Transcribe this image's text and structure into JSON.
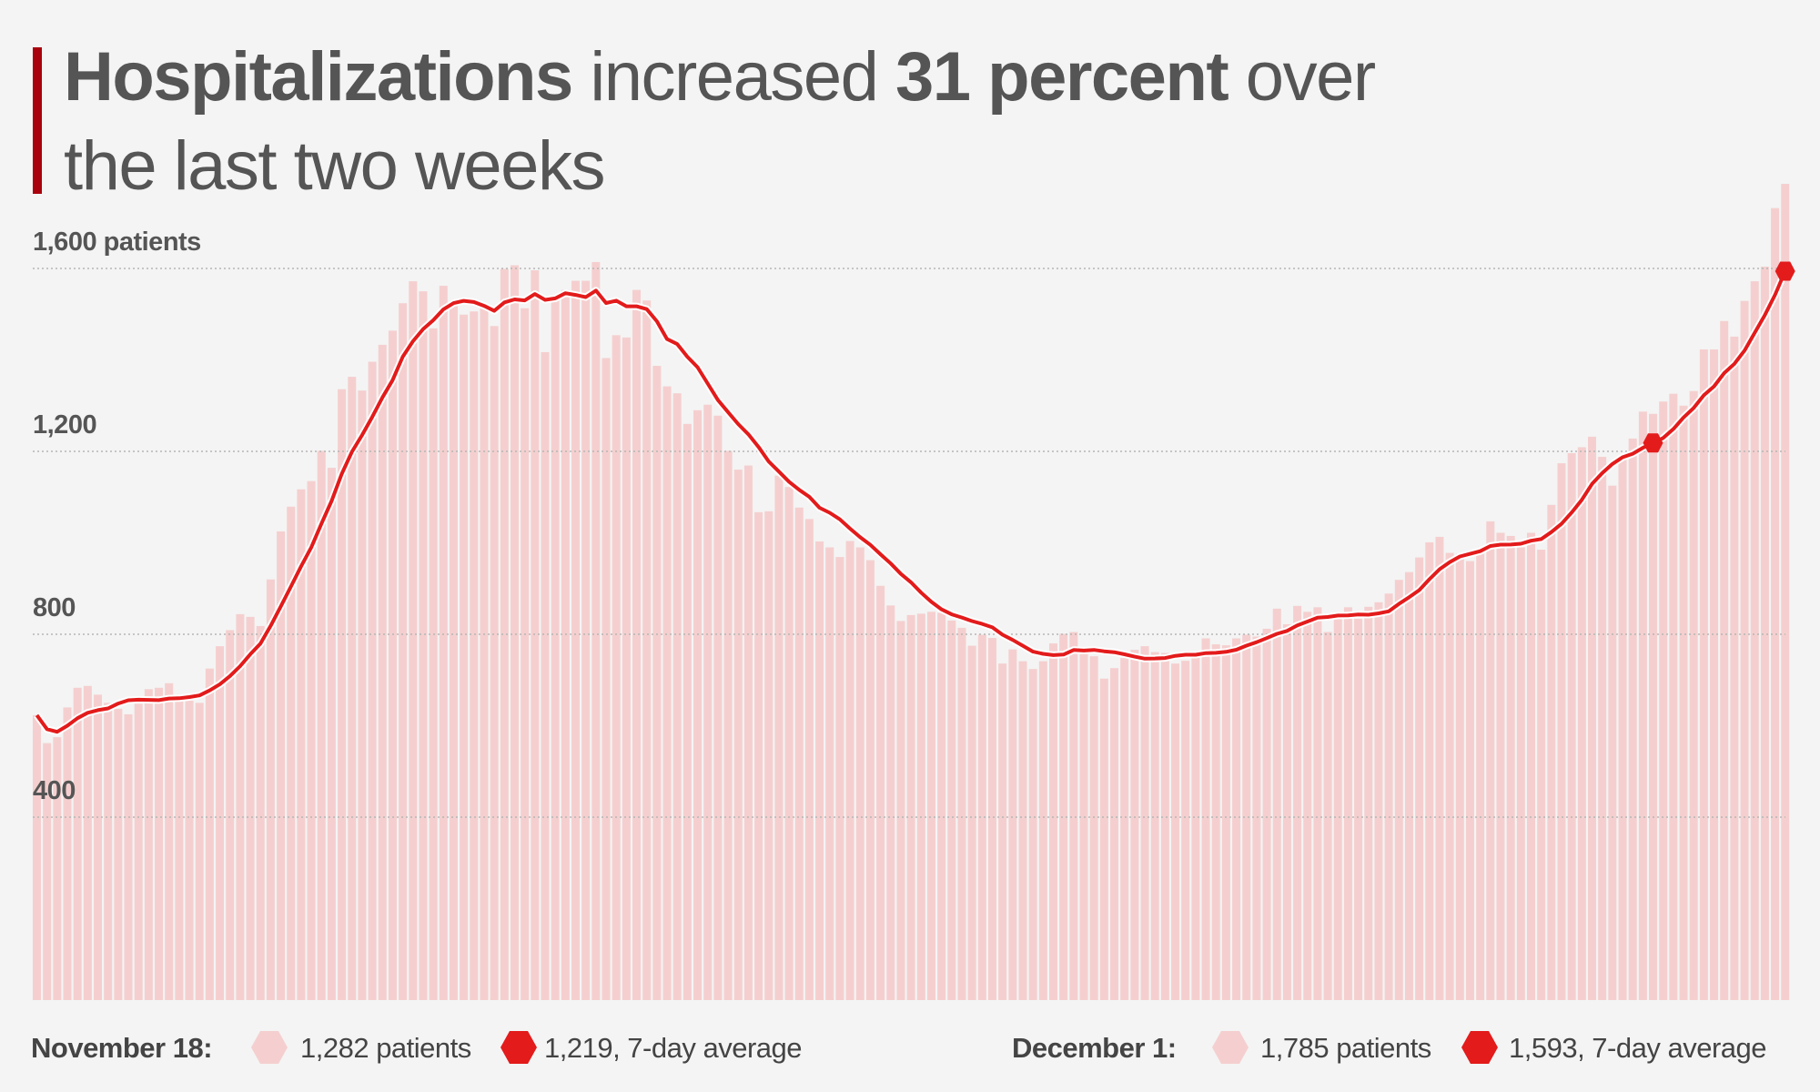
{
  "title": {
    "bold1": "Hospitalizations",
    "text1": " increased ",
    "bold2": "31 percent",
    "text2": " over",
    "line2": "the last two weeks"
  },
  "legend": {
    "left": {
      "date": "November 18:",
      "patients": "1,282 patients",
      "average": "1,219, 7-day average"
    },
    "right": {
      "date": "December 1:",
      "patients": "1,785 patients",
      "average": "1,593, 7-day average"
    }
  },
  "colors": {
    "bars": "#f5cfcf",
    "line": "#e31b1b",
    "accent": "#a8000c",
    "background": "#f4f4f4"
  },
  "chart_data": {
    "type": "bar",
    "ylabel": "patients",
    "ylim": [
      0,
      1600
    ],
    "yticks": [
      400,
      800,
      1200,
      1600
    ],
    "ytick_labels": [
      "400",
      "800",
      "1,200",
      "1,600 patients"
    ],
    "grid": true,
    "values": [
      623,
      562,
      575,
      640,
      683,
      687,
      668,
      650,
      637,
      625,
      648,
      680,
      683,
      693,
      655,
      655,
      650,
      725,
      774,
      809,
      844,
      838,
      818,
      920,
      1025,
      1079,
      1117,
      1135,
      1201,
      1164,
      1336,
      1363,
      1333,
      1396,
      1433,
      1464,
      1524,
      1572,
      1550,
      1469,
      1562,
      1528,
      1499,
      1506,
      1513,
      1474,
      1599,
      1607,
      1513,
      1596,
      1417,
      1536,
      1553,
      1573,
      1573,
      1614,
      1404,
      1454,
      1449,
      1553,
      1530,
      1387,
      1342,
      1327,
      1260,
      1290,
      1302,
      1278,
      1201,
      1160,
      1169,
      1067,
      1069,
      1147,
      1122,
      1077,
      1052,
      1003,
      990,
      969,
      1004,
      990,
      962,
      906,
      863,
      829,
      842,
      845,
      849,
      847,
      830,
      814,
      775,
      799,
      792,
      736,
      767,
      741,
      724,
      741,
      780,
      801,
      805,
      758,
      752,
      703,
      726,
      748,
      766,
      774,
      761,
      759,
      736,
      742,
      749,
      791,
      778,
      776,
      791,
      799,
      795,
      812,
      856,
      822,
      862,
      849,
      859,
      805,
      834,
      859,
      834,
      860,
      870,
      889,
      919,
      936,
      968,
      1001,
      1013,
      978,
      976,
      960,
      976,
      1047,
      1022,
      1015,
      990,
      1022,
      985,
      1083,
      1174,
      1196,
      1209,
      1232,
      1188,
      1125,
      1186,
      1228,
      1287,
      1282,
      1309,
      1326,
      1300,
      1332,
      1423,
      1423,
      1485,
      1451,
      1529,
      1572,
      1604,
      1732,
      1785
    ],
    "line_series": "7-day average",
    "highlights": [
      {
        "label": "November 18",
        "patients": 1282,
        "average": 1219
      },
      {
        "label": "December 1",
        "patients": 1785,
        "average": 1593
      }
    ]
  }
}
